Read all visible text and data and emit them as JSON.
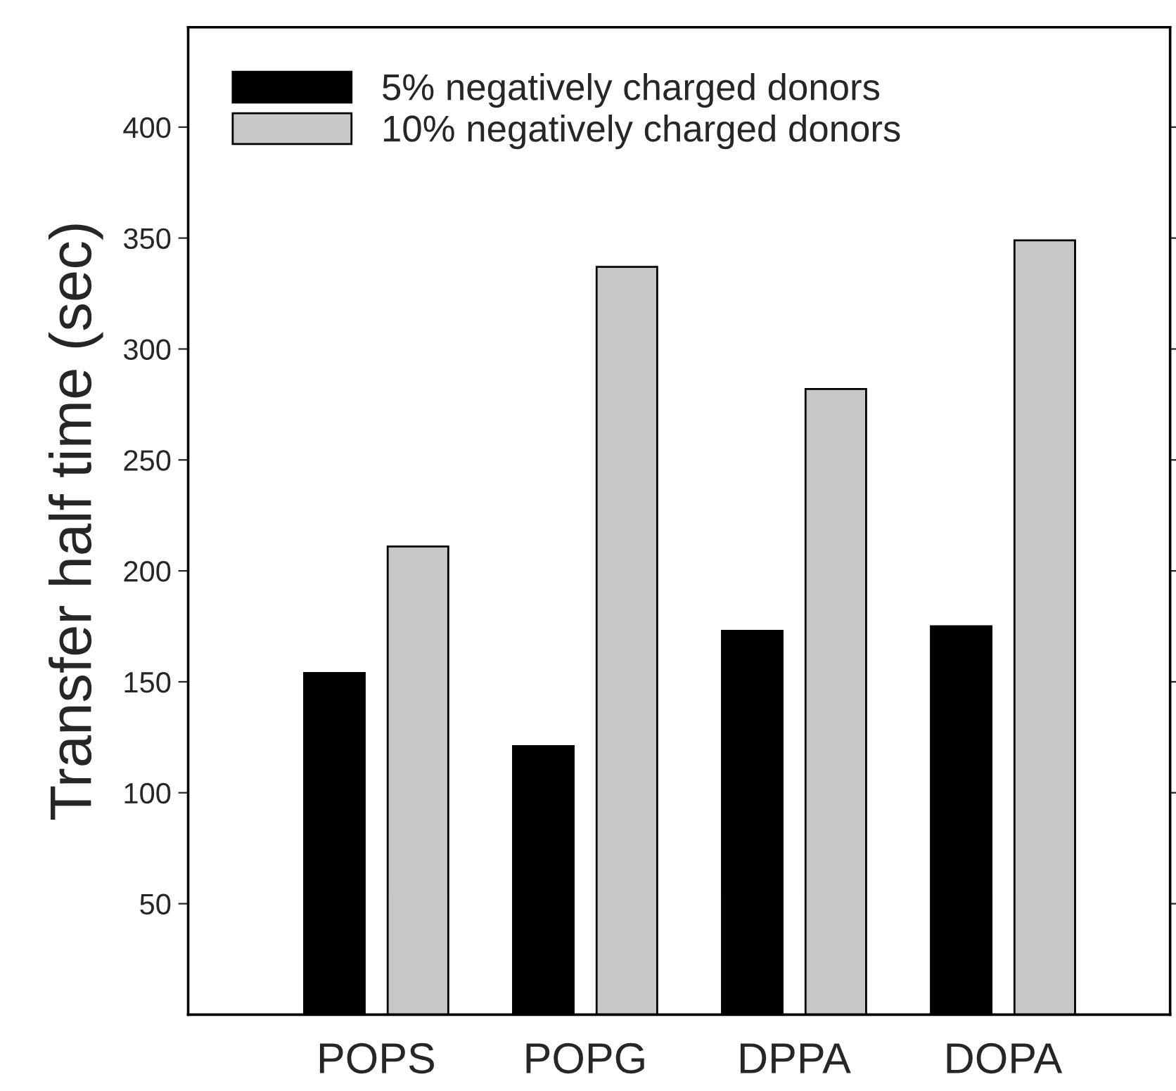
{
  "chart_data": {
    "type": "bar",
    "ylabel": "Transfer half time (sec)",
    "categories": [
      "POPS",
      "POPG",
      "DPPA",
      "DOPA"
    ],
    "series": [
      {
        "name": "5% negatively charged donors",
        "color": "#000000",
        "values": [
          154,
          121,
          173,
          175
        ]
      },
      {
        "name": "10% negatively charged donors",
        "color": "#c8c8c8",
        "values": [
          211,
          337,
          282,
          349
        ]
      }
    ],
    "ylim": [
      0,
      445
    ],
    "yticks": [
      50,
      100,
      150,
      200,
      250,
      300,
      350,
      400
    ],
    "grid": false,
    "legend": "top left"
  }
}
